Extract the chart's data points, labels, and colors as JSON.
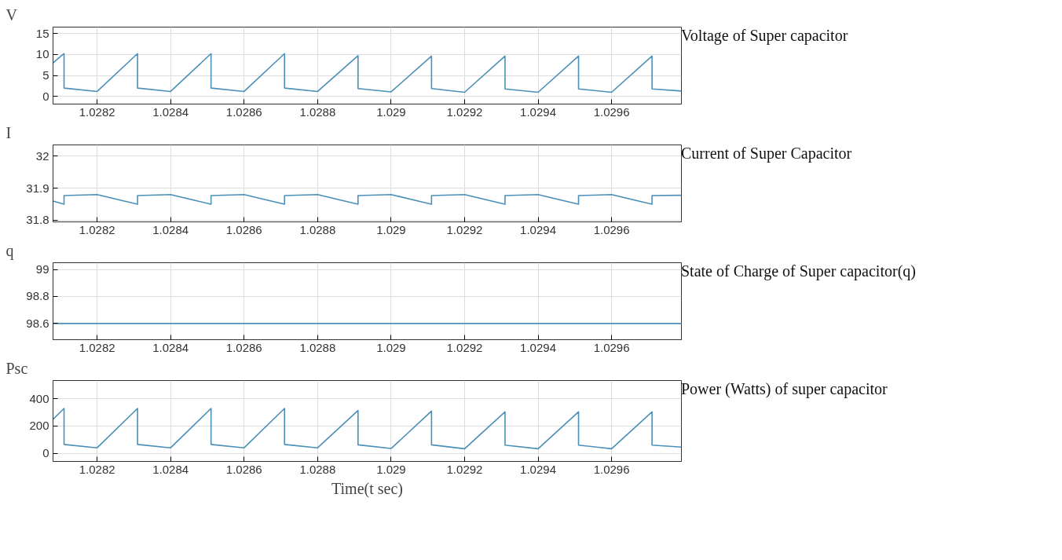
{
  "chart_data": [
    {
      "type": "line",
      "title": "Voltage of Super capacitor",
      "ylabel": "V",
      "xlim": [
        1.02808,
        1.02979
      ],
      "xticks": [
        1.0282,
        1.0284,
        1.0286,
        1.0288,
        1.029,
        1.0292,
        1.0294,
        1.0296
      ],
      "ylim": [
        -1.8,
        16.5
      ],
      "yticks": [
        0,
        5,
        10,
        15
      ],
      "grid": true,
      "series": [
        {
          "color": "#4a90b8",
          "x": [
            1.02808,
            1.02811,
            1.02811,
            1.0282,
            1.02831,
            1.02831,
            1.0284,
            1.02851,
            1.02851,
            1.0286,
            1.02871,
            1.02871,
            1.0288,
            1.02891,
            1.02891,
            1.029,
            1.02911,
            1.02911,
            1.0292,
            1.02931,
            1.02931,
            1.0294,
            1.02951,
            1.02951,
            1.0296,
            1.02971,
            1.02971,
            1.02979
          ],
          "values": [
            8,
            10.2,
            2.0,
            1.2,
            10.2,
            2.0,
            1.2,
            10.2,
            2.0,
            1.2,
            10.2,
            2.0,
            1.2,
            9.7,
            1.9,
            1.1,
            9.6,
            1.9,
            1.0,
            9.6,
            1.8,
            1.0,
            9.6,
            1.8,
            1.0,
            9.6,
            1.8,
            1.3
          ]
        }
      ]
    },
    {
      "type": "line",
      "title": "Current of Super Capacitor",
      "ylabel": "I",
      "xlim": [
        1.02808,
        1.02979
      ],
      "xticks": [
        1.0282,
        1.0284,
        1.0286,
        1.0288,
        1.029,
        1.0292,
        1.0294,
        1.0296
      ],
      "ylim": [
        31.795,
        32.035
      ],
      "yticks": [
        31.8,
        31.9,
        32
      ],
      "grid": true,
      "series": [
        {
          "color": "#4a90b8",
          "x": [
            1.02808,
            1.02811,
            1.02811,
            1.0282,
            1.02831,
            1.02831,
            1.0284,
            1.02851,
            1.02851,
            1.0286,
            1.02871,
            1.02871,
            1.0288,
            1.02891,
            1.02891,
            1.029,
            1.02911,
            1.02911,
            1.0292,
            1.02931,
            1.02931,
            1.0294,
            1.02951,
            1.02951,
            1.0296,
            1.02971,
            1.02971,
            1.02979
          ],
          "values": [
            31.86,
            31.85,
            31.877,
            31.88,
            31.85,
            31.877,
            31.88,
            31.85,
            31.877,
            31.88,
            31.85,
            31.877,
            31.88,
            31.85,
            31.877,
            31.88,
            31.85,
            31.877,
            31.88,
            31.85,
            31.877,
            31.88,
            31.85,
            31.877,
            31.88,
            31.85,
            31.877,
            31.878
          ]
        }
      ]
    },
    {
      "type": "line",
      "title": "State of Charge of Super capacitor(q)",
      "ylabel": "q",
      "xlim": [
        1.02808,
        1.02979
      ],
      "xticks": [
        1.0282,
        1.0284,
        1.0286,
        1.0288,
        1.029,
        1.0292,
        1.0294,
        1.0296
      ],
      "ylim": [
        98.48,
        99.05
      ],
      "yticks": [
        98.6,
        98.8,
        99
      ],
      "grid": true,
      "series": [
        {
          "color": "#4a90b8",
          "x": [
            1.02808,
            1.02979
          ],
          "values": [
            98.6,
            98.6
          ]
        }
      ]
    },
    {
      "type": "line",
      "title": "Power (Watts) of super capacitor",
      "ylabel": "Psc",
      "xlabel": "Time(t sec)",
      "xlim": [
        1.02808,
        1.02979
      ],
      "xticks": [
        1.0282,
        1.0284,
        1.0286,
        1.0288,
        1.029,
        1.0292,
        1.0294,
        1.0296
      ],
      "ylim": [
        -60,
        535
      ],
      "yticks": [
        0,
        200,
        400
      ],
      "grid": true,
      "series": [
        {
          "color": "#4a90b8",
          "x": [
            1.02808,
            1.02811,
            1.02811,
            1.0282,
            1.02831,
            1.02831,
            1.0284,
            1.02851,
            1.02851,
            1.0286,
            1.02871,
            1.02871,
            1.0288,
            1.02891,
            1.02891,
            1.029,
            1.02911,
            1.02911,
            1.0292,
            1.02931,
            1.02931,
            1.0294,
            1.02951,
            1.02951,
            1.0296,
            1.02971,
            1.02971,
            1.02979
          ],
          "values": [
            250,
            330,
            65,
            40,
            330,
            65,
            40,
            330,
            65,
            40,
            330,
            65,
            40,
            315,
            62,
            35,
            310,
            62,
            33,
            305,
            60,
            33,
            305,
            60,
            33,
            305,
            60,
            45
          ]
        }
      ]
    }
  ]
}
